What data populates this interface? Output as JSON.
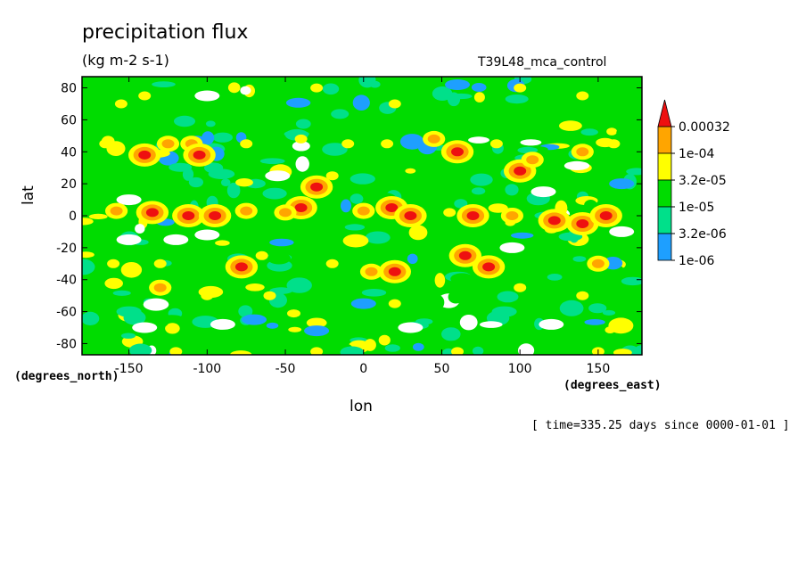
{
  "chart_data": {
    "type": "heatmap",
    "title": "precipitation flux",
    "subtitle": "(kg m-2 s-1)",
    "run_label": "T39L48_mca_control",
    "xlabel": "lon",
    "ylabel": "lat",
    "x_units": "(degrees_east)",
    "y_units": "(degrees_north)",
    "timestamp": "[ time=335.25 days since 0000-01-01 ]",
    "xlim": [
      -180,
      178
    ],
    "ylim": [
      -87,
      87
    ],
    "x_ticks": [
      -150,
      -100,
      -50,
      0,
      50,
      100,
      150
    ],
    "y_ticks": [
      80,
      60,
      40,
      20,
      0,
      -20,
      -40,
      -60,
      -80
    ],
    "x_tick_labels": [
      "-150",
      "-100",
      "-50",
      "0",
      "50",
      "100",
      "150"
    ],
    "y_tick_labels": [
      "80",
      "60",
      "40",
      "20",
      "0",
      "-20",
      "-40",
      "-60",
      "-80"
    ],
    "colorbar": {
      "labels": [
        "0.00032",
        "1e-04",
        "3.2e-05",
        "1e-05",
        "3.2e-06",
        "1e-06"
      ],
      "levels": [
        1e-06,
        3.2e-06,
        1e-05,
        3.2e-05,
        0.0001,
        0.00032
      ],
      "colors": [
        "#ffffff",
        "#1e9fff",
        "#00e08a",
        "#00dc00",
        "#ffff00",
        "#ffa500",
        "#ee1010"
      ]
    },
    "background_level": 3,
    "features": [
      {
        "lon": -155,
        "lat": 70,
        "level": 4
      },
      {
        "lon": -100,
        "lat": 75,
        "level": 0
      },
      {
        "lon": -140,
        "lat": 75,
        "level": 4
      },
      {
        "lon": -30,
        "lat": 80,
        "level": 4
      },
      {
        "lon": 20,
        "lat": 70,
        "level": 4
      },
      {
        "lon": 100,
        "lat": 80,
        "level": 4
      },
      {
        "lon": 140,
        "lat": 75,
        "level": 4
      },
      {
        "lon": 60,
        "lat": 82,
        "level": 1
      },
      {
        "lon": -165,
        "lat": 45,
        "level": 4
      },
      {
        "lon": -140,
        "lat": 38,
        "level": 6
      },
      {
        "lon": -125,
        "lat": 45,
        "level": 5
      },
      {
        "lon": -110,
        "lat": 45,
        "level": 5
      },
      {
        "lon": -105,
        "lat": 38,
        "level": 6
      },
      {
        "lon": -75,
        "lat": 45,
        "level": 4
      },
      {
        "lon": -40,
        "lat": 48,
        "level": 4
      },
      {
        "lon": -10,
        "lat": 45,
        "level": 4
      },
      {
        "lon": 15,
        "lat": 45,
        "level": 4
      },
      {
        "lon": 45,
        "lat": 48,
        "level": 5
      },
      {
        "lon": 60,
        "lat": 40,
        "level": 6
      },
      {
        "lon": 85,
        "lat": 45,
        "level": 4
      },
      {
        "lon": 100,
        "lat": 28,
        "level": 6
      },
      {
        "lon": 108,
        "lat": 35,
        "level": 5
      },
      {
        "lon": 140,
        "lat": 40,
        "level": 5
      },
      {
        "lon": 160,
        "lat": 45,
        "level": 4
      },
      {
        "lon": -30,
        "lat": 18,
        "level": 6
      },
      {
        "lon": -20,
        "lat": 25,
        "level": 4
      },
      {
        "lon": -40,
        "lat": 5,
        "level": 6
      },
      {
        "lon": -55,
        "lat": 25,
        "level": 0
      },
      {
        "lon": -150,
        "lat": 10,
        "level": 0
      },
      {
        "lon": 115,
        "lat": 15,
        "level": 0
      },
      {
        "lon": 165,
        "lat": 20,
        "level": 1
      },
      {
        "lon": -158,
        "lat": 3,
        "level": 5
      },
      {
        "lon": -135,
        "lat": 2,
        "level": 6
      },
      {
        "lon": -112,
        "lat": 0,
        "level": 6
      },
      {
        "lon": -95,
        "lat": 0,
        "level": 6
      },
      {
        "lon": -75,
        "lat": 3,
        "level": 5
      },
      {
        "lon": -50,
        "lat": 2,
        "level": 5
      },
      {
        "lon": 0,
        "lat": 3,
        "level": 5
      },
      {
        "lon": 18,
        "lat": 5,
        "level": 6
      },
      {
        "lon": 30,
        "lat": 0,
        "level": 6
      },
      {
        "lon": 55,
        "lat": 2,
        "level": 4
      },
      {
        "lon": 70,
        "lat": 0,
        "level": 6
      },
      {
        "lon": 95,
        "lat": 0,
        "level": 5
      },
      {
        "lon": 122,
        "lat": -3,
        "level": 6
      },
      {
        "lon": 140,
        "lat": -5,
        "level": 6
      },
      {
        "lon": 155,
        "lat": 0,
        "level": 6
      },
      {
        "lon": -150,
        "lat": -15,
        "level": 0
      },
      {
        "lon": -120,
        "lat": -15,
        "level": 0
      },
      {
        "lon": -100,
        "lat": -12,
        "level": 0
      },
      {
        "lon": 95,
        "lat": -20,
        "level": 0
      },
      {
        "lon": 165,
        "lat": -10,
        "level": 0
      },
      {
        "lon": -160,
        "lat": -30,
        "level": 4
      },
      {
        "lon": -130,
        "lat": -30,
        "level": 4
      },
      {
        "lon": -78,
        "lat": -32,
        "level": 6
      },
      {
        "lon": -65,
        "lat": -25,
        "level": 4
      },
      {
        "lon": -20,
        "lat": -30,
        "level": 4
      },
      {
        "lon": 5,
        "lat": -35,
        "level": 5
      },
      {
        "lon": 20,
        "lat": -35,
        "level": 6
      },
      {
        "lon": 65,
        "lat": -25,
        "level": 6
      },
      {
        "lon": 80,
        "lat": -32,
        "level": 6
      },
      {
        "lon": 150,
        "lat": -30,
        "level": 5
      },
      {
        "lon": -130,
        "lat": -45,
        "level": 5
      },
      {
        "lon": -100,
        "lat": -50,
        "level": 4
      },
      {
        "lon": -60,
        "lat": -50,
        "level": 4
      },
      {
        "lon": 20,
        "lat": -55,
        "level": 4
      },
      {
        "lon": 100,
        "lat": -45,
        "level": 4
      },
      {
        "lon": 140,
        "lat": -50,
        "level": 4
      },
      {
        "lon": -150,
        "lat": -60,
        "level": 2
      },
      {
        "lon": -70,
        "lat": -65,
        "level": 1
      },
      {
        "lon": 0,
        "lat": -55,
        "level": 1
      },
      {
        "lon": 90,
        "lat": -60,
        "level": 2
      },
      {
        "lon": -140,
        "lat": -70,
        "level": 0
      },
      {
        "lon": -90,
        "lat": -68,
        "level": 0
      },
      {
        "lon": -30,
        "lat": -72,
        "level": 1
      },
      {
        "lon": 30,
        "lat": -70,
        "level": 0
      },
      {
        "lon": 120,
        "lat": -68,
        "level": 0
      },
      {
        "lon": -120,
        "lat": -85,
        "level": 4
      },
      {
        "lon": -30,
        "lat": -85,
        "level": 4
      },
      {
        "lon": 60,
        "lat": -85,
        "level": 4
      },
      {
        "lon": 150,
        "lat": -85,
        "level": 4
      }
    ]
  }
}
